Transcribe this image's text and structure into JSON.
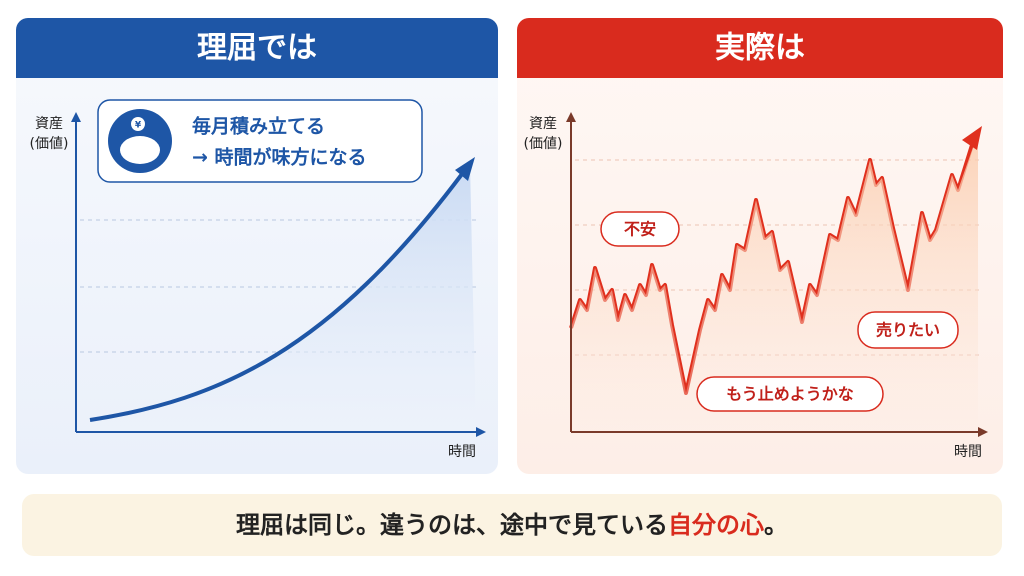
{
  "left": {
    "title": "理屈では",
    "icon_text": "¥",
    "callout": [
      "毎月積み立てる",
      "→ 時間が味方になる"
    ],
    "y_label": [
      "資産",
      "(価値)"
    ],
    "x_label": "時間"
  },
  "right": {
    "title": "実際は",
    "y_label": [
      "資産",
      "(価値)"
    ],
    "x_label": "時間",
    "bubbles": [
      "不安",
      "もう止めようかな",
      "売りたい"
    ]
  },
  "footer": {
    "text": [
      "理屈は同じ。違うのは、途中で見ている",
      "自分の心",
      "。"
    ]
  }
}
